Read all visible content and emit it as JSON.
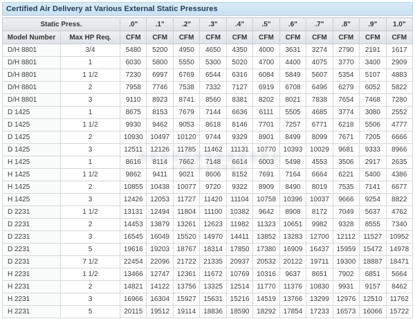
{
  "title": "Certified Air Delivery at Various External Static Pressures",
  "colors": {
    "title_bg": "#cfe4f2",
    "title_text": "#1c3e5e",
    "header_bg": "#e4e8ec",
    "header_text": "#333333",
    "cell_text": "#3c3c3c",
    "grid_border": "#d5d7d9",
    "outer_border": "#c2c8cd"
  },
  "table": {
    "static_press_label": "Static Press.",
    "model_number_label": "Model Number",
    "max_hp_label": "Max HP Req.",
    "cfm_label": "CFM",
    "pressure_labels": [
      ".0\"",
      ".1\"",
      ".2\"",
      ".3\"",
      ".4\"",
      ".5\"",
      ".6\"",
      ".7\"",
      ".8\"",
      ".9\"",
      "1.0\""
    ],
    "rows": [
      {
        "model": "D/H 8801",
        "hp": "3/4",
        "cfm": [
          5480,
          5200,
          4950,
          4650,
          4350,
          4000,
          3631,
          3274,
          2790,
          2191,
          1617
        ]
      },
      {
        "model": "D/H 8801",
        "hp": "1",
        "cfm": [
          6030,
          5800,
          5550,
          5300,
          5020,
          4700,
          4400,
          4075,
          3770,
          3400,
          2909
        ]
      },
      {
        "model": "D/H 8801",
        "hp": "1 1/2",
        "cfm": [
          7230,
          6997,
          6769,
          6544,
          6316,
          6084,
          5849,
          5607,
          5354,
          5107,
          4883
        ]
      },
      {
        "model": "D/H 8801",
        "hp": "2",
        "cfm": [
          7958,
          7746,
          7538,
          7332,
          7127,
          6919,
          6708,
          6496,
          6279,
          6052,
          5822
        ]
      },
      {
        "model": "D/H 8801",
        "hp": "3",
        "cfm": [
          9110,
          8923,
          8741,
          8560,
          8381,
          8202,
          8021,
          7838,
          7654,
          7468,
          7280
        ]
      },
      {
        "model": "D 1425",
        "hp": "1",
        "cfm": [
          8675,
          8153,
          7679,
          7144,
          6636,
          6111,
          5505,
          4685,
          3774,
          3080,
          2552
        ]
      },
      {
        "model": "D 1425",
        "hp": "1 1/2",
        "cfm": [
          9930,
          9462,
          9053,
          8618,
          8146,
          7701,
          7257,
          6771,
          6218,
          5506,
          4777
        ]
      },
      {
        "model": "D 1425",
        "hp": "2",
        "cfm": [
          10930,
          10497,
          10120,
          9744,
          9329,
          8901,
          8499,
          8099,
          7671,
          7205,
          6666
        ]
      },
      {
        "model": "D 1425",
        "hp": "3",
        "cfm": [
          12511,
          12126,
          11785,
          11462,
          11131,
          10770,
          10393,
          10029,
          9681,
          9333,
          8966
        ]
      },
      {
        "model": "H 1425",
        "hp": "1",
        "cfm": [
          8616,
          8114,
          7662,
          7148,
          6614,
          6003,
          5498,
          4553,
          3506,
          2917,
          2635
        ]
      },
      {
        "model": "H 1425",
        "hp": "1 1/2",
        "cfm": [
          9862,
          9411,
          9021,
          8606,
          8152,
          7691,
          7164,
          6664,
          6221,
          5400,
          4386
        ]
      },
      {
        "model": "H 1425",
        "hp": "2",
        "cfm": [
          10855,
          10438,
          10077,
          9720,
          9322,
          8909,
          8490,
          8019,
          7535,
          7141,
          6677
        ]
      },
      {
        "model": "H 1425",
        "hp": "3",
        "cfm": [
          12426,
          12053,
          11727,
          11420,
          11104,
          10758,
          10396,
          10037,
          9666,
          9254,
          8822
        ]
      },
      {
        "model": "D 2231",
        "hp": "1 1/2",
        "cfm": [
          13131,
          12494,
          11804,
          11100,
          10382,
          9642,
          8908,
          8172,
          7049,
          5637,
          4762
        ]
      },
      {
        "model": "D 2231",
        "hp": "2",
        "cfm": [
          14453,
          13879,
          13261,
          12623,
          11982,
          11323,
          10651,
          9982,
          9328,
          8555,
          7340
        ]
      },
      {
        "model": "D 2231",
        "hp": "3",
        "cfm": [
          16545,
          16049,
          15520,
          14970,
          14411,
          13852,
          13283,
          12700,
          12112,
          11527,
          10952
        ]
      },
      {
        "model": "D 2231",
        "hp": "5",
        "cfm": [
          19616,
          19203,
          18767,
          18314,
          17850,
          17380,
          16909,
          16437,
          15959,
          15472,
          14978
        ]
      },
      {
        "model": "D 2231",
        "hp": "7 1/2",
        "cfm": [
          22454,
          22096,
          21722,
          21335,
          20937,
          20532,
          20122,
          19711,
          19300,
          18887,
          18471
        ]
      },
      {
        "model": "H 2231",
        "hp": "1 1/2",
        "cfm": [
          13466,
          12747,
          12361,
          11672,
          10769,
          10316,
          9637,
          8651,
          7902,
          6851,
          5664
        ]
      },
      {
        "model": "H 2231",
        "hp": "2",
        "cfm": [
          14821,
          14122,
          13756,
          13325,
          12514,
          11770,
          11376,
          10830,
          9931,
          9157,
          8462
        ]
      },
      {
        "model": "H 2231",
        "hp": "3",
        "cfm": [
          16966,
          16304,
          15927,
          15631,
          15216,
          14519,
          13766,
          13299,
          12976,
          12510,
          11762
        ]
      },
      {
        "model": "H 2231",
        "hp": "5",
        "cfm": [
          20115,
          19512,
          19114,
          18836,
          18590,
          18292,
          17854,
          17233,
          16573,
          16066,
          15722
        ]
      }
    ]
  }
}
